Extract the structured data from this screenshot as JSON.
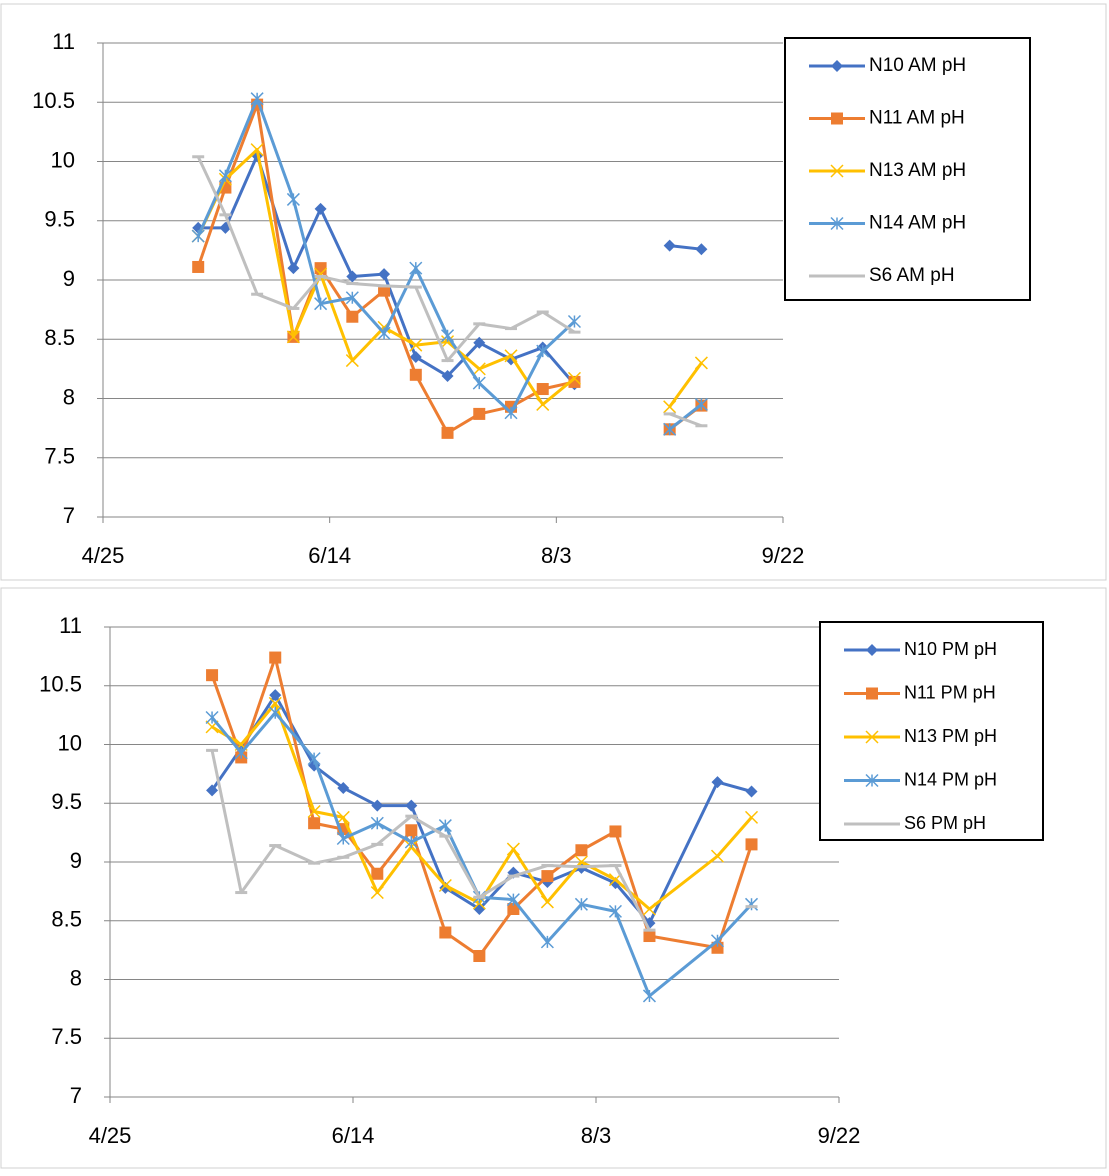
{
  "chart_data": [
    {
      "type": "line",
      "x": [
        "5/16",
        "5/22",
        "5/29",
        "6/6",
        "6/12",
        "6/19",
        "6/26",
        "7/3",
        "7/10",
        "7/17",
        "7/24",
        "7/31",
        "8/7",
        "8/14",
        "8/28",
        "9/4"
      ],
      "xlim": [
        "4/25",
        "9/22"
      ],
      "xticks": [
        "4/25",
        "6/14",
        "8/3",
        "9/22"
      ],
      "ylim": [
        7,
        11
      ],
      "yticks": [
        7,
        7.5,
        8,
        8.5,
        9,
        9.5,
        10,
        10.5,
        11
      ],
      "grid": true,
      "legend": "right",
      "series": [
        {
          "name": "N10 AM pH",
          "color": "#4472c4",
          "marker": "diamond",
          "values": [
            9.44,
            9.44,
            10.05,
            9.1,
            9.6,
            9.03,
            9.05,
            8.35,
            8.19,
            8.47,
            8.33,
            8.43,
            8.12,
            null,
            9.29,
            9.26
          ]
        },
        {
          "name": "N11 AM pH",
          "color": "#ed7d31",
          "marker": "square",
          "values": [
            9.11,
            9.78,
            10.48,
            8.52,
            9.1,
            8.69,
            8.91,
            8.2,
            7.71,
            7.87,
            7.93,
            8.08,
            8.14,
            null,
            7.74,
            7.94
          ]
        },
        {
          "name": "N13 AM pH",
          "color": "#ffc000",
          "marker": "x",
          "values": [
            9.37,
            9.85,
            10.1,
            8.52,
            9.05,
            8.32,
            8.6,
            8.45,
            8.48,
            8.25,
            8.36,
            7.95,
            8.17,
            null,
            7.93,
            8.3
          ]
        },
        {
          "name": "N14 AM pH",
          "color": "#5b9bd5",
          "marker": "star",
          "values": [
            9.37,
            9.88,
            10.53,
            9.68,
            8.8,
            8.85,
            8.55,
            9.1,
            8.53,
            8.13,
            7.88,
            8.4,
            8.65,
            null,
            7.74,
            7.95
          ]
        },
        {
          "name": "S6 AM pH",
          "color": "#bfbfbf",
          "marker": "dash",
          "values": [
            10.04,
            9.55,
            8.88,
            8.76,
            9.03,
            8.97,
            8.95,
            8.94,
            8.32,
            8.63,
            8.59,
            8.73,
            8.56,
            null,
            7.87,
            7.77
          ]
        }
      ]
    },
    {
      "type": "line",
      "x": [
        "5/16",
        "5/22",
        "5/29",
        "6/6",
        "6/12",
        "6/19",
        "6/26",
        "7/3",
        "7/10",
        "7/17",
        "7/24",
        "7/31",
        "8/7",
        "8/14",
        "8/28",
        "9/4"
      ],
      "xlim": [
        "4/25",
        "9/22"
      ],
      "xticks": [
        "4/25",
        "6/14",
        "8/3",
        "9/22"
      ],
      "ylim": [
        7,
        11
      ],
      "yticks": [
        7,
        7.5,
        8,
        8.5,
        9,
        9.5,
        10,
        10.5,
        11
      ],
      "grid": true,
      "legend": "right",
      "series": [
        {
          "name": "N10 PM pH",
          "color": "#4472c4",
          "marker": "diamond",
          "values": [
            9.61,
            9.97,
            10.42,
            9.82,
            9.63,
            9.48,
            9.48,
            8.78,
            8.6,
            8.91,
            8.83,
            8.95,
            8.82,
            8.48,
            9.68,
            9.6
          ]
        },
        {
          "name": "N11 PM pH",
          "color": "#ed7d31",
          "marker": "square",
          "values": [
            10.59,
            9.89,
            10.74,
            9.33,
            9.28,
            8.9,
            9.27,
            8.4,
            8.2,
            8.6,
            8.88,
            9.1,
            9.26,
            8.37,
            8.27,
            9.15
          ]
        },
        {
          "name": "N13 PM pH",
          "color": "#ffc000",
          "marker": "x",
          "values": [
            10.15,
            10.0,
            10.35,
            9.43,
            9.38,
            8.74,
            9.13,
            8.8,
            8.65,
            9.11,
            8.66,
            9.0,
            8.85,
            8.6,
            9.05,
            9.38
          ]
        },
        {
          "name": "N14 PM pH",
          "color": "#5b9bd5",
          "marker": "star",
          "values": [
            10.23,
            9.93,
            10.27,
            9.88,
            9.2,
            9.33,
            9.17,
            9.31,
            8.7,
            8.68,
            8.32,
            8.64,
            8.58,
            7.86,
            8.33,
            8.64
          ]
        },
        {
          "name": "S6 PM pH",
          "color": "#bfbfbf",
          "marker": "dash",
          "values": [
            9.95,
            8.74,
            9.14,
            8.99,
            9.04,
            9.15,
            9.39,
            9.22,
            8.7,
            8.88,
            8.97,
            8.96,
            8.97,
            8.42,
            null,
            8.62
          ]
        }
      ]
    }
  ]
}
